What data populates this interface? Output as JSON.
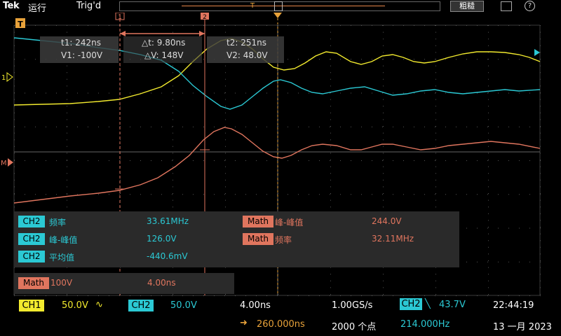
{
  "top": {
    "brand": "Tek",
    "run": "运行",
    "trig": "Trig'd",
    "coarse": "粗糙",
    "help": "?"
  },
  "markers": {
    "trigger": "T",
    "ch1": "1",
    "math": "M"
  },
  "cursor": {
    "t1": "t1: 242ns",
    "v1": "V1: -100V",
    "dt": "△t: 9.80ns",
    "dv": "△V: 148V",
    "t2": "t2: 251ns",
    "v2": "V2: 48.0V",
    "a_label": "1",
    "b_label": "2"
  },
  "measurements": [
    {
      "src": "CH2",
      "name": "频率",
      "value": "33.61MHz"
    },
    {
      "src": "CH2",
      "name": "峰-峰值",
      "value": "126.0V"
    },
    {
      "src": "CH2",
      "name": "平均值",
      "value": "-440.6mV"
    }
  ],
  "math_measurements": [
    {
      "src": "Math",
      "name": "峰-峰值",
      "value": "244.0V"
    },
    {
      "src": "Math",
      "name": "频率",
      "value": "32.11MHz"
    }
  ],
  "math_def": {
    "src": "Math",
    "scale": "100V",
    "time": "4.00ns"
  },
  "bottom": {
    "ch1": "CH1",
    "ch1_scale": "50.0V",
    "ch1_coupling": "∿",
    "ch2": "CH2",
    "ch2_scale": "50.0V",
    "timebase": "4.00ns",
    "delay_arrow": "➜",
    "delay": "260.000ns",
    "sample_rate": "1.00GS/s",
    "record": "2000 个点",
    "trig_src": "CH2",
    "trig_slope": "╲",
    "trig_level": "43.7V",
    "trig_freq": "214.000Hz",
    "time": "22:44:19",
    "date": "13 一月 2023"
  },
  "colors": {
    "ch1": "#f2ea2e",
    "ch2": "#2bc9d4",
    "math": "#e0755e",
    "trigger": "#e8a23a"
  }
}
